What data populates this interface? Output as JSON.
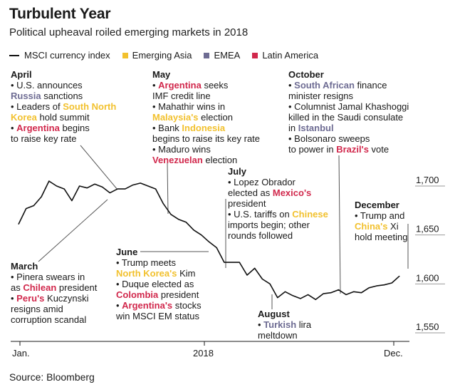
{
  "title": "Turbulent Year",
  "subtitle": "Political upheaval roiled emerging markets in 2018",
  "legend": [
    {
      "label": "MSCI currency index",
      "kind": "line",
      "color": "#111111"
    },
    {
      "label": "Emerging Asia",
      "kind": "box",
      "color": "#f2c12e"
    },
    {
      "label": "EMEA",
      "kind": "box",
      "color": "#6e6c93"
    },
    {
      "label": "Latin America",
      "kind": "box",
      "color": "#d1284c"
    }
  ],
  "colors": {
    "line": "#111111",
    "asia": "#f2c12e",
    "emea": "#6e6c93",
    "latam": "#d1284c"
  },
  "source": "Source: Bloomberg",
  "chart_data": {
    "type": "line",
    "title": "Turbulent Year",
    "subtitle": "Political upheaval roiled emerging markets in 2018",
    "xlabel": "",
    "ylabel": "",
    "x_tick_labels": [
      "Jan.",
      "2018",
      "Dec."
    ],
    "y_ticks": [
      1550,
      1600,
      1650,
      1700
    ],
    "y_tick_labels": [
      "1,550",
      "1,600",
      "1,650",
      "1,700"
    ],
    "ylim": [
      1550,
      1700
    ],
    "series": [
      {
        "name": "MSCI currency index",
        "x": [
          0,
          2,
          4,
          6,
          8,
          10,
          12,
          14,
          16,
          18,
          20,
          22,
          24,
          26,
          28,
          30,
          32,
          34,
          36,
          38,
          40,
          42,
          44,
          46,
          48,
          50,
          52,
          54,
          56,
          58,
          60,
          62,
          64,
          66,
          68,
          70,
          72,
          74,
          76,
          78,
          80,
          82,
          84,
          86,
          88,
          90,
          92,
          94,
          96,
          98,
          100
        ],
        "values": [
          1661,
          1677,
          1680,
          1689,
          1705,
          1700,
          1697,
          1685,
          1700,
          1698,
          1702,
          1699,
          1693,
          1697,
          1697,
          1701,
          1703,
          1700,
          1697,
          1682,
          1671,
          1666,
          1663,
          1655,
          1650,
          1643,
          1637,
          1622,
          1622,
          1622,
          1609,
          1616,
          1605,
          1600,
          1586,
          1592,
          1588,
          1585,
          1589,
          1584,
          1590,
          1591,
          1594,
          1589,
          1592,
          1591,
          1596,
          1598,
          1599,
          1601,
          1608
        ]
      }
    ]
  },
  "annotations": {
    "april": {
      "heading": "April",
      "lines": [
        [
          {
            "t": "• U.S. announces"
          }
        ],
        [
          {
            "t": "Russia",
            "c": "emea"
          },
          {
            "t": " sanctions"
          }
        ],
        [
          {
            "t": "• Leaders of "
          },
          {
            "t": "South North",
            "c": "asia"
          }
        ],
        [
          {
            "t": "Korea",
            "c": "asia"
          },
          {
            "t": " hold summit"
          }
        ],
        [
          {
            "t": "• "
          },
          {
            "t": "Argentina",
            "c": "latam"
          },
          {
            "t": " begins"
          }
        ],
        [
          {
            "t": "to raise key rate"
          }
        ]
      ]
    },
    "may": {
      "heading": "May",
      "lines": [
        [
          {
            "t": "• "
          },
          {
            "t": "Argentina",
            "c": "latam"
          },
          {
            "t": " seeks"
          }
        ],
        [
          {
            "t": "IMF credit line"
          }
        ],
        [
          {
            "t": "• Mahathir wins in"
          }
        ],
        [
          {
            "t": "Malaysia's",
            "c": "asia"
          },
          {
            "t": " election"
          }
        ],
        [
          {
            "t": "• Bank "
          },
          {
            "t": "Indonesia",
            "c": "asia"
          }
        ],
        [
          {
            "t": "begins to raise its key rate"
          }
        ],
        [
          {
            "t": "• Maduro wins"
          }
        ],
        [
          {
            "t": "Venezuelan",
            "c": "latam"
          },
          {
            "t": " election"
          }
        ]
      ]
    },
    "october": {
      "heading": "October",
      "lines": [
        [
          {
            "t": "• "
          },
          {
            "t": "South African",
            "c": "emea"
          },
          {
            "t": " finance"
          }
        ],
        [
          {
            "t": "minister resigns"
          }
        ],
        [
          {
            "t": "• Columnist Jamal Khashoggi"
          }
        ],
        [
          {
            "t": "killed in the Saudi consulate"
          }
        ],
        [
          {
            "t": "in "
          },
          {
            "t": "Istanbul",
            "c": "emea"
          }
        ],
        [
          {
            "t": "• Bolsonaro sweeps"
          }
        ],
        [
          {
            "t": "to power in "
          },
          {
            "t": "Brazil's",
            "c": "latam"
          },
          {
            "t": " vote"
          }
        ]
      ]
    },
    "july": {
      "heading": "July",
      "lines": [
        [
          {
            "t": "• Lopez Obrador"
          }
        ],
        [
          {
            "t": "elected as "
          },
          {
            "t": "Mexico's",
            "c": "latam"
          }
        ],
        [
          {
            "t": "president"
          }
        ],
        [
          {
            "t": "• U.S. tariffs on "
          },
          {
            "t": "Chinese",
            "c": "asia"
          }
        ],
        [
          {
            "t": "imports begin; other"
          }
        ],
        [
          {
            "t": "rounds followed"
          }
        ]
      ]
    },
    "december": {
      "heading": "December",
      "lines": [
        [
          {
            "t": "• Trump and"
          }
        ],
        [
          {
            "t": "China's",
            "c": "asia"
          },
          {
            "t": " Xi"
          }
        ],
        [
          {
            "t": "hold meeting"
          }
        ]
      ]
    },
    "march": {
      "heading": "March",
      "lines": [
        [
          {
            "t": "• Pinera swears in"
          }
        ],
        [
          {
            "t": "as "
          },
          {
            "t": "Chilean",
            "c": "latam"
          },
          {
            "t": " president"
          }
        ],
        [
          {
            "t": "• "
          },
          {
            "t": "Peru's",
            "c": "latam"
          },
          {
            "t": " Kuczynski"
          }
        ],
        [
          {
            "t": "resigns amid"
          }
        ],
        [
          {
            "t": "corruption scandal"
          }
        ]
      ]
    },
    "june": {
      "heading": "June",
      "lines": [
        [
          {
            "t": "• Trump meets"
          }
        ],
        [
          {
            "t": "North Korea's",
            "c": "asia"
          },
          {
            "t": " Kim"
          }
        ],
        [
          {
            "t": "• Duque elected as"
          }
        ],
        [
          {
            "t": "Colombia",
            "c": "latam"
          },
          {
            "t": " president"
          }
        ],
        [
          {
            "t": "• "
          },
          {
            "t": "Argentina's",
            "c": "latam"
          },
          {
            "t": " stocks"
          }
        ],
        [
          {
            "t": "win MSCI EM status"
          }
        ]
      ]
    },
    "august": {
      "heading": "August",
      "lines": [
        [
          {
            "t": "• "
          },
          {
            "t": "Turkish",
            "c": "emea"
          },
          {
            "t": " lira"
          }
        ],
        [
          {
            "t": "meltdown"
          }
        ]
      ]
    }
  }
}
